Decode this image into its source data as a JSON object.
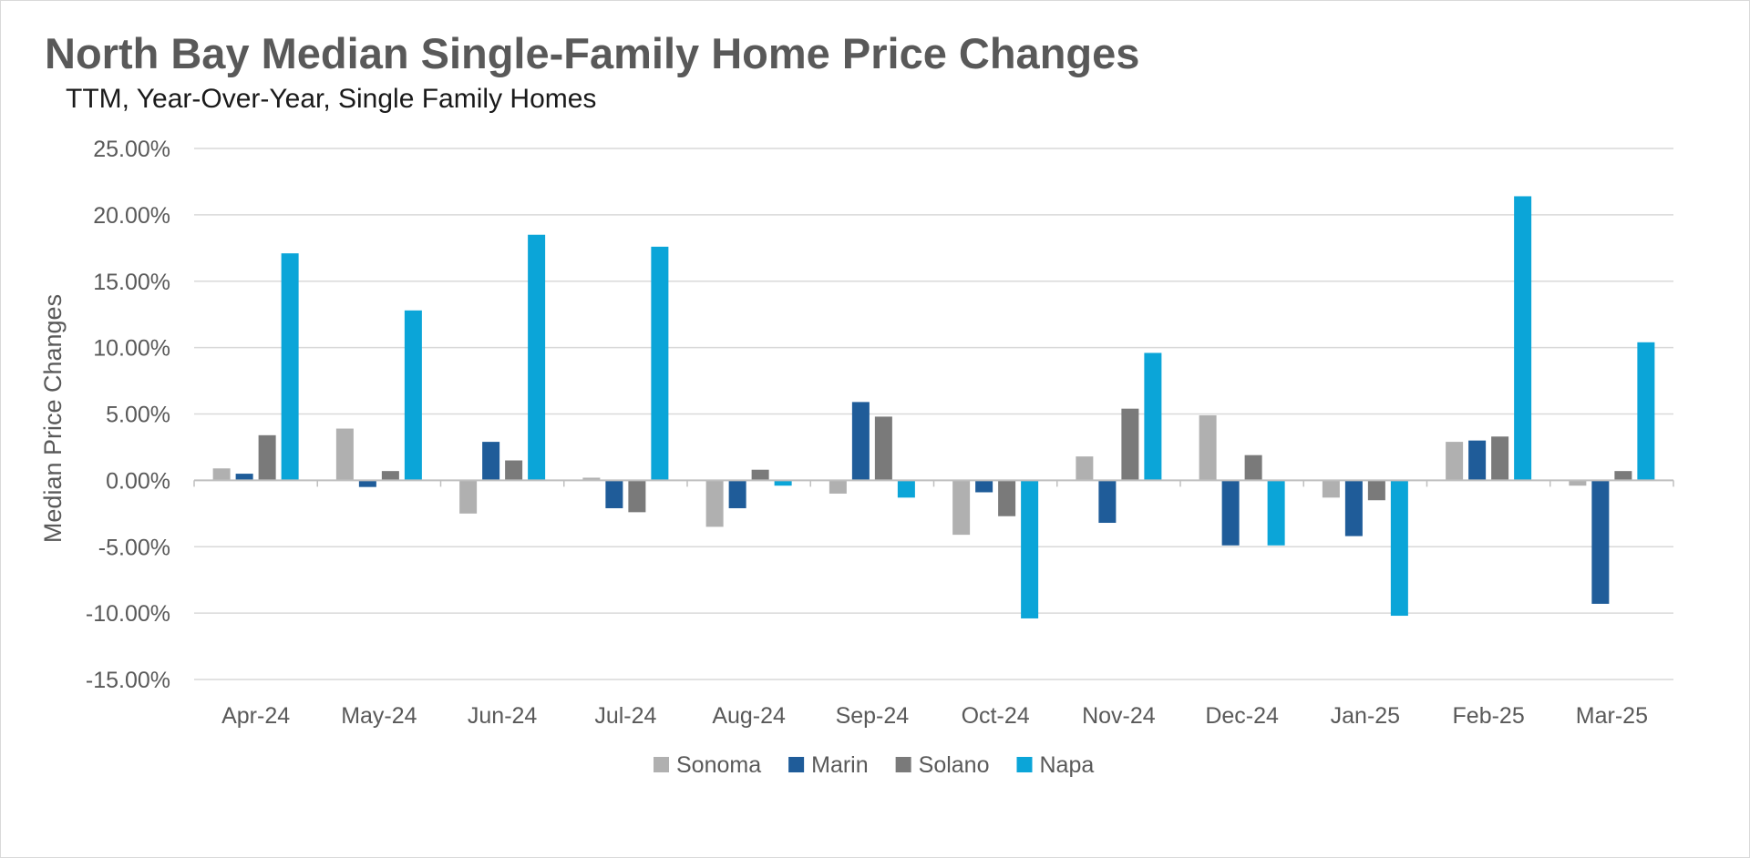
{
  "title": "North Bay Median Single-Family Home Price Changes",
  "subtitle": "TTM, Year-Over-Year, Single Family Homes",
  "chart_data": {
    "type": "bar",
    "title": "North Bay Median Single-Family Home Price Changes",
    "subtitle": "TTM, Year-Over-Year, Single Family Homes",
    "xlabel": "",
    "ylabel": "Median Price Changes",
    "ylim": [
      -15,
      25
    ],
    "yticks": [
      25,
      20,
      15,
      10,
      5,
      0,
      -5,
      -10,
      -15
    ],
    "ytick_labels": [
      "25.00%",
      "20.00%",
      "15.00%",
      "10.00%",
      "5.00%",
      "0.00%",
      "-5.00%",
      "-10.00%",
      "-15.00%"
    ],
    "grid": true,
    "legend_position": "bottom",
    "categories": [
      "Apr-24",
      "May-24",
      "Jun-24",
      "Jul-24",
      "Aug-24",
      "Sep-24",
      "Oct-24",
      "Nov-24",
      "Dec-24",
      "Jan-25",
      "Feb-25",
      "Mar-25"
    ],
    "series": [
      {
        "name": "Sonoma",
        "color": "#b0b0b0",
        "values": [
          0.9,
          3.9,
          -2.5,
          0.2,
          -3.5,
          -1.0,
          -4.1,
          1.8,
          4.9,
          -1.3,
          2.9,
          -0.4
        ]
      },
      {
        "name": "Marin",
        "color": "#1f5c99",
        "values": [
          0.5,
          -0.5,
          2.9,
          -2.1,
          -2.1,
          5.9,
          -0.9,
          -3.2,
          -4.9,
          -4.2,
          3.0,
          -9.3
        ]
      },
      {
        "name": "Solano",
        "color": "#7a7a7a",
        "values": [
          3.4,
          0.7,
          1.5,
          -2.4,
          0.8,
          4.8,
          -2.7,
          5.4,
          1.9,
          -1.5,
          3.3,
          0.7
        ]
      },
      {
        "name": "Napa",
        "color": "#0ba5d8",
        "values": [
          17.1,
          12.8,
          18.5,
          17.6,
          -0.4,
          -1.3,
          -10.4,
          9.6,
          -4.9,
          -10.2,
          21.4,
          10.4
        ]
      }
    ]
  },
  "colors": {
    "gridline": "#d9d9d9",
    "axis": "#bfbfbf",
    "text": "#595959"
  }
}
